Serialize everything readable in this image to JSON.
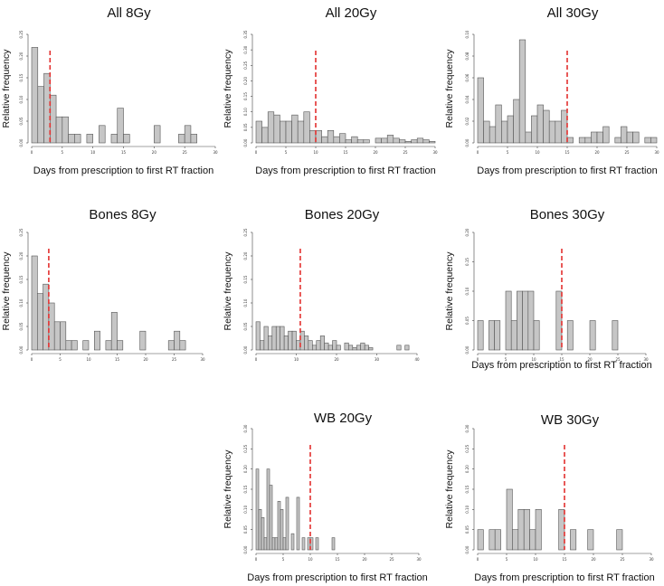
{
  "colors": {
    "bar_fill": "#c6c6c6",
    "bar_stroke": "#555555",
    "reference_line": "#e3302f"
  },
  "chart_data": [
    {
      "type": "bar",
      "title": "All 8Gy",
      "xlabel": "Days from prescription to first RT fraction",
      "ylabel": "Relative frequency",
      "bin_width": 1,
      "bin_starts": [
        0,
        1,
        2,
        3,
        4,
        5,
        6,
        7,
        8,
        9,
        10,
        11,
        12,
        13,
        14,
        15,
        16,
        17,
        18,
        19,
        20,
        21,
        22,
        23,
        24,
        25,
        26
      ],
      "values": [
        0.22,
        0.13,
        0.16,
        0.11,
        0.06,
        0.06,
        0.02,
        0.02,
        0,
        0.02,
        0,
        0.04,
        0,
        0.02,
        0.08,
        0.02,
        0,
        0,
        0,
        0,
        0.04,
        0,
        0,
        0,
        0.02,
        0.04,
        0.02
      ],
      "reference_line_x": 3,
      "xlim": [
        0,
        30
      ],
      "ylim": [
        0,
        0.25
      ],
      "x_ticks": [
        "0",
        "5",
        "10",
        "15",
        "20",
        "25",
        "30"
      ],
      "y_ticks": [
        "0.00",
        "0.05",
        "0.10",
        "0.15",
        "0.20",
        "0.25"
      ]
    },
    {
      "type": "bar",
      "title": "All 20Gy",
      "xlabel": "Days from prescription to first RT fraction",
      "ylabel": "Relative frequency",
      "bin_width": 1,
      "bin_starts": [
        0,
        1,
        2,
        3,
        4,
        5,
        6,
        7,
        8,
        9,
        10,
        11,
        12,
        13,
        14,
        15,
        16,
        17,
        18,
        19,
        20,
        21,
        22,
        23,
        24,
        25,
        26,
        27,
        28,
        29
      ],
      "values": [
        0.07,
        0.05,
        0.1,
        0.09,
        0.07,
        0.07,
        0.09,
        0.07,
        0.1,
        0.04,
        0.04,
        0.02,
        0.04,
        0.02,
        0.03,
        0.01,
        0.02,
        0.01,
        0.01,
        0,
        0.015,
        0.015,
        0.025,
        0.015,
        0.01,
        0.005,
        0.01,
        0.015,
        0.01,
        0.005
      ],
      "reference_line_x": 10,
      "xlim": [
        0,
        30
      ],
      "ylim": [
        0,
        0.35
      ],
      "x_ticks": [
        "0",
        "5",
        "10",
        "15",
        "20",
        "25",
        "30"
      ],
      "y_ticks": [
        "0.00",
        "0.05",
        "0.10",
        "0.15",
        "0.20",
        "0.25",
        "0.30",
        "0.35"
      ]
    },
    {
      "type": "bar",
      "title": "All 30Gy",
      "xlabel": "Days from prescription to first RT fraction",
      "ylabel": "Relative frequency",
      "bin_width": 1,
      "bin_starts": [
        0,
        1,
        2,
        3,
        4,
        5,
        6,
        7,
        8,
        9,
        10,
        11,
        12,
        13,
        14,
        15,
        16,
        17,
        18,
        19,
        20,
        21,
        22,
        23,
        24,
        25,
        26,
        27,
        28,
        29
      ],
      "values": [
        0.06,
        0.02,
        0.015,
        0.035,
        0.02,
        0.025,
        0.04,
        0.095,
        0.01,
        0.025,
        0.035,
        0.03,
        0.02,
        0.02,
        0.03,
        0.005,
        0,
        0.005,
        0.005,
        0.01,
        0.01,
        0.015,
        0,
        0.005,
        0.015,
        0.01,
        0.01,
        0,
        0.005,
        0.005
      ],
      "reference_line_x": 15,
      "xlim": [
        0,
        30
      ],
      "ylim": [
        0,
        0.1
      ],
      "x_ticks": [
        "0",
        "5",
        "10",
        "15",
        "20",
        "25",
        "30"
      ],
      "y_ticks": [
        "0.00",
        "0.02",
        "0.04",
        "0.06",
        "0.08",
        "0.10"
      ]
    },
    {
      "type": "bar",
      "title": "Bones 8Gy",
      "xlabel": "",
      "ylabel": "Relative frequency",
      "bin_width": 1,
      "bin_starts": [
        0,
        1,
        2,
        3,
        4,
        5,
        6,
        7,
        8,
        9,
        10,
        11,
        12,
        13,
        14,
        15,
        16,
        17,
        18,
        19,
        20,
        21,
        22,
        23,
        24,
        25,
        26
      ],
      "values": [
        0.2,
        0.12,
        0.14,
        0.1,
        0.06,
        0.06,
        0.02,
        0.02,
        0,
        0.02,
        0,
        0.04,
        0,
        0.02,
        0.08,
        0.02,
        0,
        0,
        0,
        0.04,
        0,
        0,
        0,
        0,
        0.02,
        0.04,
        0.02
      ],
      "reference_line_x": 3,
      "xlim": [
        0,
        30
      ],
      "ylim": [
        0,
        0.25
      ],
      "x_ticks": [
        "0",
        "5",
        "10",
        "15",
        "20",
        "25",
        "30"
      ],
      "y_ticks": [
        "0.00",
        "0.05",
        "0.10",
        "0.15",
        "0.20",
        "0.25"
      ]
    },
    {
      "type": "bar",
      "title": "Bones 20Gy",
      "xlabel": "",
      "ylabel": "Relative frequency",
      "bin_width": 1,
      "bin_starts": [
        0,
        1,
        2,
        3,
        4,
        5,
        6,
        7,
        8,
        9,
        10,
        11,
        12,
        13,
        14,
        15,
        16,
        17,
        18,
        19,
        20,
        21,
        22,
        23,
        24,
        25,
        26,
        27,
        28,
        29,
        30,
        31,
        32,
        33,
        34,
        35,
        36,
        37,
        38
      ],
      "values": [
        0.06,
        0.02,
        0.05,
        0.03,
        0.05,
        0.05,
        0.05,
        0.03,
        0.04,
        0.04,
        0.02,
        0.04,
        0.03,
        0.02,
        0.01,
        0.02,
        0.03,
        0.015,
        0.01,
        0.02,
        0.01,
        0,
        0.015,
        0.01,
        0.005,
        0.01,
        0.015,
        0.01,
        0.005,
        0,
        0,
        0,
        0,
        0,
        0,
        0.01,
        0,
        0.01,
        0
      ],
      "reference_line_x": 11,
      "xlim": [
        0,
        40
      ],
      "ylim": [
        0,
        0.25
      ],
      "x_ticks": [
        "0",
        "10",
        "20",
        "30",
        "40"
      ],
      "y_ticks": [
        "0.00",
        "0.05",
        "0.10",
        "0.15",
        "0.20",
        "0.25"
      ]
    },
    {
      "type": "bar",
      "title": "Bones 30Gy",
      "xlabel": "Days from prescription to first RT fraction",
      "ylabel": "Relative frequency",
      "bin_width": 1,
      "bin_starts": [
        0,
        1,
        2,
        3,
        4,
        5,
        6,
        7,
        8,
        9,
        10,
        11,
        12,
        13,
        14,
        15,
        16,
        17,
        18,
        19,
        20,
        21,
        22,
        23,
        24
      ],
      "values": [
        0.05,
        0,
        0.05,
        0.05,
        0,
        0.1,
        0.05,
        0.1,
        0.1,
        0.1,
        0.05,
        0,
        0,
        0,
        0.1,
        0,
        0.05,
        0,
        0,
        0,
        0.05,
        0,
        0,
        0,
        0.05
      ],
      "reference_line_x": 15,
      "xlim": [
        0,
        30
      ],
      "ylim": [
        0,
        0.2
      ],
      "x_ticks": [
        "0",
        "5",
        "10",
        "15",
        "20",
        "25",
        "30"
      ],
      "y_ticks": [
        "0.00",
        "0.05",
        "0.10",
        "0.15",
        "0.20"
      ]
    },
    {
      "type": "bar",
      "title": "WB  20Gy",
      "xlabel": "Days from prescription to first RT fraction",
      "ylabel": "Relative frequency",
      "bin_width": 0.5,
      "bin_starts": [
        0,
        0.5,
        1,
        1.5,
        2,
        2.5,
        3,
        3.5,
        4,
        4.5,
        5,
        5.5,
        6,
        6.5,
        7,
        7.5,
        8,
        8.5,
        9,
        9.5,
        10,
        10.5,
        11,
        11.5,
        12,
        12.5,
        13,
        13.5,
        14
      ],
      "values": [
        0.2,
        0.1,
        0.08,
        0.03,
        0.2,
        0.16,
        0.03,
        0.03,
        0.12,
        0.1,
        0.03,
        0.13,
        0,
        0.04,
        0,
        0.13,
        0,
        0.03,
        0,
        0.03,
        0.03,
        0,
        0.03,
        0,
        0,
        0,
        0,
        0,
        0.03
      ],
      "reference_line_x": 10,
      "xlim": [
        0,
        30
      ],
      "ylim": [
        0,
        0.3
      ],
      "x_ticks": [
        "0",
        "5",
        "10",
        "15",
        "20",
        "25",
        "30"
      ],
      "y_ticks": [
        "0.00",
        "0.05",
        "0.10",
        "0.15",
        "0.20",
        "0.25",
        "0.30"
      ]
    },
    {
      "type": "bar",
      "title": "WB  30Gy",
      "xlabel": "Days from prescription to first RT fraction",
      "ylabel": "Relative frequency",
      "bin_width": 1,
      "bin_starts": [
        0,
        1,
        2,
        3,
        4,
        5,
        6,
        7,
        8,
        9,
        10,
        11,
        12,
        13,
        14,
        15,
        16,
        17,
        18,
        19,
        20,
        21,
        22,
        23,
        24
      ],
      "values": [
        0.05,
        0,
        0.05,
        0.05,
        0,
        0.15,
        0.05,
        0.1,
        0.1,
        0.05,
        0.1,
        0,
        0,
        0,
        0.1,
        0,
        0.05,
        0,
        0,
        0.05,
        0,
        0,
        0,
        0,
        0.05
      ],
      "reference_line_x": 15,
      "xlim": [
        0,
        30
      ],
      "ylim": [
        0,
        0.3
      ],
      "x_ticks": [
        "0",
        "5",
        "10",
        "15",
        "20",
        "25",
        "30"
      ],
      "y_ticks": [
        "0.00",
        "0.05",
        "0.10",
        "0.15",
        "0.20",
        "0.25",
        "0.30"
      ]
    }
  ]
}
